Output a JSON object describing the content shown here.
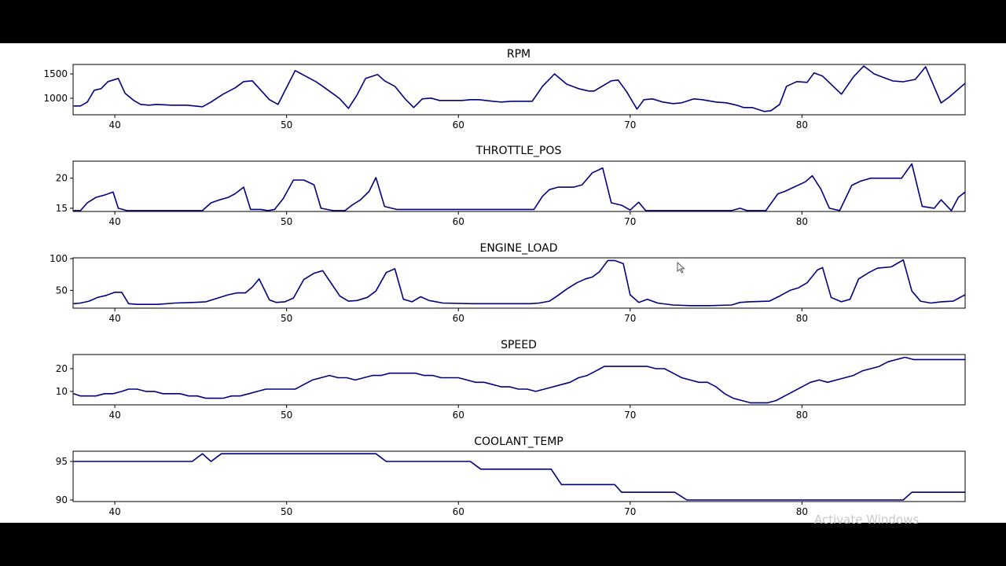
{
  "watermark": "Activate Windows",
  "line_color": "#000080",
  "xaxis": {
    "min": 37.57,
    "max": 89.5,
    "ticks": [
      40,
      50,
      60,
      70,
      80
    ]
  },
  "chart_data": [
    {
      "type": "line",
      "title": "RPM",
      "xlabel": "",
      "ylabel": "",
      "ylim": [
        661,
        1694
      ],
      "yticks": [
        1000,
        1500
      ],
      "grid": false,
      "x": [
        37.6,
        38.0,
        38.4,
        38.8,
        39.2,
        39.6,
        40.2,
        40.6,
        41.1,
        41.5,
        42.0,
        42.4,
        43.3,
        44.2,
        45.1,
        45.6,
        46.3,
        47.0,
        47.5,
        48.0,
        48.5,
        49.0,
        49.5,
        50.5,
        51.1,
        51.7,
        52.1,
        52.8,
        53.1,
        53.6,
        54.1,
        54.6,
        55.3,
        55.7,
        56.3,
        56.9,
        57.4,
        57.9,
        58.4,
        58.9,
        59.5,
        60.2,
        60.7,
        61.2,
        62.0,
        62.5,
        63.1,
        63.8,
        64.3,
        64.9,
        65.6,
        66.3,
        67.0,
        67.6,
        67.9,
        68.9,
        69.3,
        69.8,
        70.4,
        70.8,
        71.3,
        71.9,
        72.5,
        73.0,
        73.7,
        74.2,
        75.0,
        75.6,
        76.2,
        76.6,
        77.1,
        77.8,
        78.2,
        78.7,
        79.1,
        79.7,
        80.3,
        80.7,
        81.2,
        82.3,
        83.0,
        83.6,
        84.2,
        84.8,
        85.3,
        85.9,
        86.6,
        87.2,
        88.1,
        88.6,
        89.5
      ],
      "values": [
        842,
        842,
        923,
        1165,
        1197,
        1342,
        1407,
        1100,
        955,
        874,
        858,
        874,
        858,
        858,
        826,
        923,
        1084,
        1213,
        1342,
        1358,
        1165,
        971,
        874,
        1568,
        1455,
        1342,
        1245,
        1068,
        987,
        794,
        1068,
        1407,
        1487,
        1358,
        1245,
        987,
        810,
        987,
        1003,
        955,
        955,
        955,
        971,
        971,
        939,
        923,
        939,
        939,
        939,
        1245,
        1500,
        1291,
        1197,
        1149,
        1149,
        1358,
        1374,
        1132,
        777,
        971,
        987,
        923,
        890,
        906,
        987,
        971,
        923,
        906,
        858,
        810,
        810,
        729,
        745,
        874,
        1245,
        1342,
        1326,
        1519,
        1455,
        1084,
        1439,
        1661,
        1500,
        1419,
        1355,
        1339,
        1387,
        1645,
        903,
        1032,
        1306
      ]
    },
    {
      "type": "line",
      "title": "THROTTLE_POS",
      "xlabel": "",
      "ylabel": "",
      "ylim": [
        14.46,
        22.84
      ],
      "yticks": [
        15,
        20
      ],
      "grid": false,
      "x": [
        37.6,
        38.0,
        38.4,
        38.9,
        39.4,
        39.9,
        40.2,
        40.7,
        42.7,
        45.1,
        45.6,
        46.1,
        46.6,
        47.0,
        47.5,
        47.9,
        48.5,
        48.9,
        49.3,
        49.8,
        50.4,
        51.0,
        51.6,
        52.0,
        52.7,
        53.4,
        53.8,
        54.3,
        54.8,
        55.2,
        55.7,
        56.4,
        59.6,
        64.2,
        64.4,
        64.9,
        65.3,
        65.8,
        66.7,
        67.2,
        67.8,
        68.4,
        68.9,
        69.5,
        70.0,
        70.5,
        70.9,
        73.1,
        75.9,
        76.4,
        76.8,
        77.9,
        78.6,
        79.0,
        79.6,
        80.2,
        80.6,
        81.1,
        81.6,
        82.2,
        82.9,
        83.4,
        84.0,
        85.8,
        86.4,
        87.0,
        87.7,
        88.1,
        88.7,
        89.1,
        89.5
      ],
      "values": [
        14.6,
        14.6,
        15.9,
        16.8,
        17.2,
        17.7,
        15.0,
        14.6,
        14.6,
        14.6,
        15.9,
        16.4,
        16.8,
        17.4,
        18.5,
        14.8,
        14.8,
        14.6,
        14.8,
        16.6,
        19.7,
        19.7,
        18.9,
        15.0,
        14.6,
        14.6,
        15.5,
        16.4,
        17.8,
        20.1,
        15.3,
        14.8,
        14.8,
        14.8,
        14.8,
        17.0,
        18.1,
        18.5,
        18.5,
        18.9,
        20.9,
        21.7,
        15.9,
        15.5,
        14.7,
        16.0,
        14.6,
        14.6,
        14.6,
        15.0,
        14.6,
        14.6,
        17.4,
        17.8,
        18.6,
        19.4,
        20.4,
        18.2,
        15.0,
        14.6,
        18.8,
        19.5,
        20.0,
        20.0,
        22.4,
        15.3,
        15.0,
        16.4,
        14.6,
        16.8,
        17.7
      ]
    },
    {
      "type": "line",
      "title": "ENGINE_LOAD",
      "xlabel": "",
      "ylabel": "",
      "ylim": [
        22,
        101.2
      ],
      "yticks": [
        50,
        100
      ],
      "grid": false,
      "x": [
        37.6,
        38.0,
        38.5,
        39.0,
        39.5,
        40.0,
        40.4,
        40.8,
        41.3,
        42.5,
        43.5,
        44.6,
        45.3,
        46.0,
        46.6,
        47.1,
        47.6,
        48.0,
        48.4,
        49.0,
        49.4,
        49.9,
        50.4,
        51.0,
        51.6,
        52.1,
        52.6,
        53.1,
        53.6,
        54.1,
        54.7,
        55.2,
        55.8,
        56.3,
        56.8,
        57.3,
        57.8,
        58.3,
        59.1,
        60.8,
        62.0,
        63.2,
        64.2,
        64.7,
        65.3,
        65.8,
        66.3,
        66.9,
        67.4,
        67.8,
        68.2,
        68.7,
        69.1,
        69.6,
        70.0,
        70.5,
        71.0,
        71.6,
        72.5,
        73.5,
        74.6,
        75.9,
        76.4,
        76.9,
        78.1,
        78.7,
        79.3,
        79.8,
        80.3,
        80.9,
        81.2,
        81.7,
        82.3,
        82.8,
        83.3,
        83.9,
        84.4,
        85.2,
        85.9,
        86.4,
        86.9,
        87.5,
        88.1,
        88.8,
        89.5
      ],
      "values": [
        29,
        30,
        33,
        39,
        42,
        47,
        47,
        29,
        28,
        28,
        30,
        31,
        32,
        38,
        43,
        46,
        46,
        55,
        68,
        35,
        31,
        32,
        38,
        67,
        77,
        81,
        61,
        41,
        33,
        34,
        39,
        49,
        78,
        84,
        36,
        32,
        40,
        34,
        30,
        29,
        29,
        29,
        29,
        30,
        33,
        42,
        52,
        62,
        68,
        71,
        79,
        97,
        97,
        92,
        43,
        31,
        36,
        30,
        27,
        26,
        26,
        27,
        31,
        32,
        33,
        41,
        50,
        54,
        62,
        82,
        86,
        39,
        32,
        36,
        68,
        78,
        85,
        87,
        98,
        49,
        33,
        30,
        32,
        33,
        43
      ]
    },
    {
      "type": "line",
      "title": "SPEED",
      "xlabel": "",
      "ylabel": "",
      "ylim": [
        4.1,
        26.2
      ],
      "yticks": [
        10,
        20
      ],
      "grid": false,
      "x": [
        37.6,
        38.0,
        38.9,
        39.4,
        39.9,
        40.4,
        40.8,
        41.3,
        41.8,
        42.3,
        42.8,
        43.8,
        44.3,
        44.8,
        45.3,
        46.3,
        46.8,
        47.3,
        47.8,
        48.3,
        48.8,
        50.5,
        51.0,
        51.5,
        52.0,
        52.5,
        53.0,
        53.5,
        54.0,
        54.5,
        55.0,
        55.5,
        56.0,
        56.5,
        57.5,
        58.0,
        58.5,
        59.0,
        60.0,
        60.5,
        61.0,
        61.5,
        62.0,
        62.5,
        63.0,
        63.5,
        64.0,
        64.5,
        65.0,
        65.5,
        66.0,
        66.5,
        67.0,
        67.5,
        68.0,
        68.5,
        69.0,
        70.0,
        71.0,
        71.5,
        72.0,
        72.5,
        73.0,
        73.5,
        74.0,
        74.5,
        75.0,
        75.5,
        76.0,
        76.5,
        77.0,
        77.5,
        78.0,
        78.5,
        79.0,
        79.5,
        80.0,
        80.5,
        81.0,
        81.5,
        82.0,
        82.5,
        83.0,
        83.5,
        84.0,
        84.5,
        85.0,
        85.5,
        86.0,
        86.5,
        87.0,
        87.5,
        88.0,
        89.5
      ],
      "values": [
        9,
        8,
        8,
        9,
        9,
        10,
        11,
        11,
        10,
        10,
        9,
        9,
        8,
        8,
        7,
        7,
        8,
        8,
        9,
        10,
        11,
        11,
        13,
        15,
        16,
        17,
        16,
        16,
        15,
        16,
        17,
        17,
        18,
        18,
        18,
        17,
        17,
        16,
        16,
        15,
        14,
        14,
        13,
        12,
        12,
        11,
        11,
        10,
        11,
        12,
        13,
        14,
        16,
        17,
        19,
        21,
        21,
        21,
        21,
        20,
        20,
        18,
        16,
        15,
        14,
        14,
        12,
        9,
        7,
        6,
        5,
        5,
        5,
        6,
        8,
        10,
        12,
        14,
        15,
        14,
        15,
        16,
        17,
        19,
        20,
        21,
        23,
        24,
        25,
        24,
        24,
        24,
        24,
        24
      ]
    },
    {
      "type": "line",
      "title": "COOLANT_TEMP",
      "xlabel": "",
      "ylabel": "",
      "ylim": [
        89.8,
        96.33
      ],
      "yticks": [
        90,
        95
      ],
      "grid": false,
      "x": [
        37.6,
        44.5,
        45.1,
        45.6,
        46.2,
        55.2,
        55.8,
        60.7,
        61.3,
        65.4,
        66.0,
        69.1,
        69.5,
        72.6,
        73.3,
        85.9,
        86.4,
        89.5
      ],
      "values": [
        95,
        95,
        96,
        95,
        96,
        96,
        95,
        95,
        94,
        94,
        92,
        92,
        91,
        91,
        90,
        90,
        91,
        91
      ]
    }
  ]
}
